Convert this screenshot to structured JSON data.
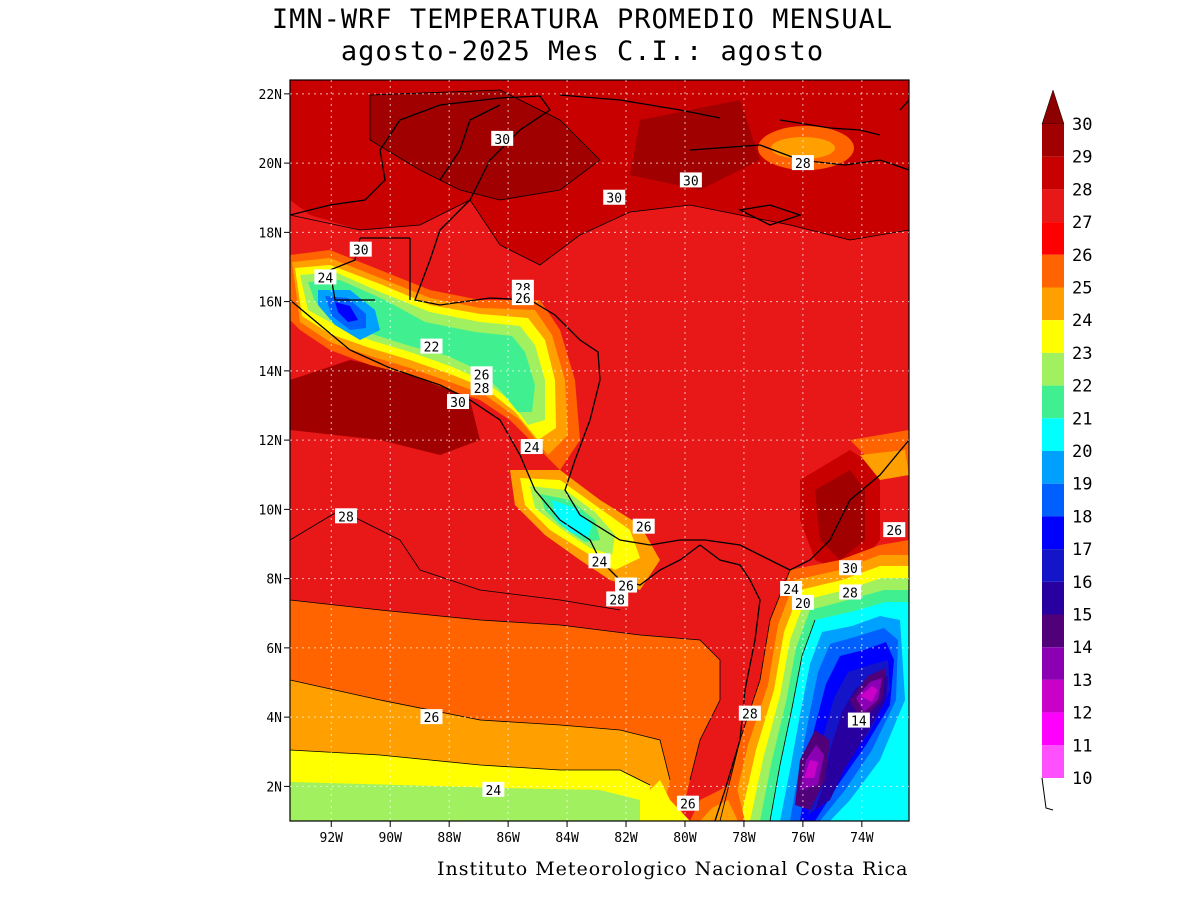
{
  "header": {
    "title_line1": "IMN-WRF  TEMPERATURA PROMEDIO MENSUAL",
    "title_line2": "agosto-2025 Mes C.I.: agosto"
  },
  "footer": {
    "credit": "Instituto Meteorologico Nacional Costa Rica"
  },
  "map": {
    "lon_range": [
      -93.4,
      -72.4
    ],
    "lat_range": [
      1.0,
      22.4
    ],
    "lon_ticks": [
      {
        "value": -92,
        "label": "92W"
      },
      {
        "value": -90,
        "label": "90W"
      },
      {
        "value": -88,
        "label": "88W"
      },
      {
        "value": -86,
        "label": "86W"
      },
      {
        "value": -84,
        "label": "84W"
      },
      {
        "value": -82,
        "label": "82W"
      },
      {
        "value": -80,
        "label": "80W"
      },
      {
        "value": -78,
        "label": "78W"
      },
      {
        "value": -76,
        "label": "76W"
      },
      {
        "value": -74,
        "label": "74W"
      }
    ],
    "lat_ticks": [
      {
        "value": 22,
        "label": "22N"
      },
      {
        "value": 20,
        "label": "20N"
      },
      {
        "value": 18,
        "label": "18N"
      },
      {
        "value": 16,
        "label": "16N"
      },
      {
        "value": 14,
        "label": "14N"
      },
      {
        "value": 12,
        "label": "12N"
      },
      {
        "value": 10,
        "label": "10N"
      },
      {
        "value": 8,
        "label": "8N"
      },
      {
        "value": 6,
        "label": "6N"
      },
      {
        "value": 4,
        "label": "4N"
      },
      {
        "value": 2,
        "label": "2N"
      }
    ],
    "contour_labels": [
      {
        "text": "30",
        "lon": -86.2,
        "lat": 20.7
      },
      {
        "text": "30",
        "lon": -82.4,
        "lat": 19.0
      },
      {
        "text": "30",
        "lon": -79.8,
        "lat": 19.5
      },
      {
        "text": "28",
        "lon": -76.0,
        "lat": 20.0
      },
      {
        "text": "30",
        "lon": -91.0,
        "lat": 17.5
      },
      {
        "text": "24",
        "lon": -92.2,
        "lat": 16.7
      },
      {
        "text": "28",
        "lon": -85.5,
        "lat": 16.4
      },
      {
        "text": "26",
        "lon": -85.5,
        "lat": 16.1
      },
      {
        "text": "22",
        "lon": -88.6,
        "lat": 14.7
      },
      {
        "text": "26",
        "lon": -86.9,
        "lat": 13.9
      },
      {
        "text": "28",
        "lon": -86.9,
        "lat": 13.5
      },
      {
        "text": "30",
        "lon": -87.7,
        "lat": 13.1
      },
      {
        "text": "24",
        "lon": -85.2,
        "lat": 11.8
      },
      {
        "text": "28",
        "lon": -91.5,
        "lat": 9.8
      },
      {
        "text": "26",
        "lon": -81.4,
        "lat": 9.5
      },
      {
        "text": "24",
        "lon": -82.9,
        "lat": 8.5
      },
      {
        "text": "26",
        "lon": -82.0,
        "lat": 7.8
      },
      {
        "text": "28",
        "lon": -82.3,
        "lat": 7.4
      },
      {
        "text": "30",
        "lon": -74.4,
        "lat": 8.3
      },
      {
        "text": "28",
        "lon": -74.4,
        "lat": 7.6
      },
      {
        "text": "26",
        "lon": -72.9,
        "lat": 9.4
      },
      {
        "text": "24",
        "lon": -76.4,
        "lat": 7.7
      },
      {
        "text": "20",
        "lon": -76.0,
        "lat": 7.3
      },
      {
        "text": "28",
        "lon": -77.8,
        "lat": 4.1
      },
      {
        "text": "14",
        "lon": -74.1,
        "lat": 3.9
      },
      {
        "text": "26",
        "lon": -88.6,
        "lat": 4.0
      },
      {
        "text": "24",
        "lon": -86.5,
        "lat": 1.9
      },
      {
        "text": "26",
        "lon": -79.9,
        "lat": 1.5
      }
    ]
  },
  "colorbar": {
    "levels": [
      {
        "label": "30",
        "color": "#a00000"
      },
      {
        "label": "29",
        "color": "#c80000"
      },
      {
        "label": "28",
        "color": "#e81818"
      },
      {
        "label": "27",
        "color": "#ff0000"
      },
      {
        "label": "26",
        "color": "#ff6400"
      },
      {
        "label": "25",
        "color": "#ffa000"
      },
      {
        "label": "24",
        "color": "#ffff00"
      },
      {
        "label": "23",
        "color": "#a0f060"
      },
      {
        "label": "22",
        "color": "#40f090"
      },
      {
        "label": "21",
        "color": "#00ffff"
      },
      {
        "label": "20",
        "color": "#00a0ff"
      },
      {
        "label": "19",
        "color": "#0060ff"
      },
      {
        "label": "18",
        "color": "#0000ff"
      },
      {
        "label": "17",
        "color": "#1414c8"
      },
      {
        "label": "16",
        "color": "#2800a0"
      },
      {
        "label": "15",
        "color": "#500078"
      },
      {
        "label": "14",
        "color": "#8c00b4"
      },
      {
        "label": "13",
        "color": "#c800c8"
      },
      {
        "label": "12",
        "color": "#ff00ff"
      },
      {
        "label": "11",
        "color": "#ff50ff"
      },
      {
        "label": "10",
        "color": "#ffa0ff"
      }
    ],
    "top_arrow_color": "#8c0000"
  }
}
